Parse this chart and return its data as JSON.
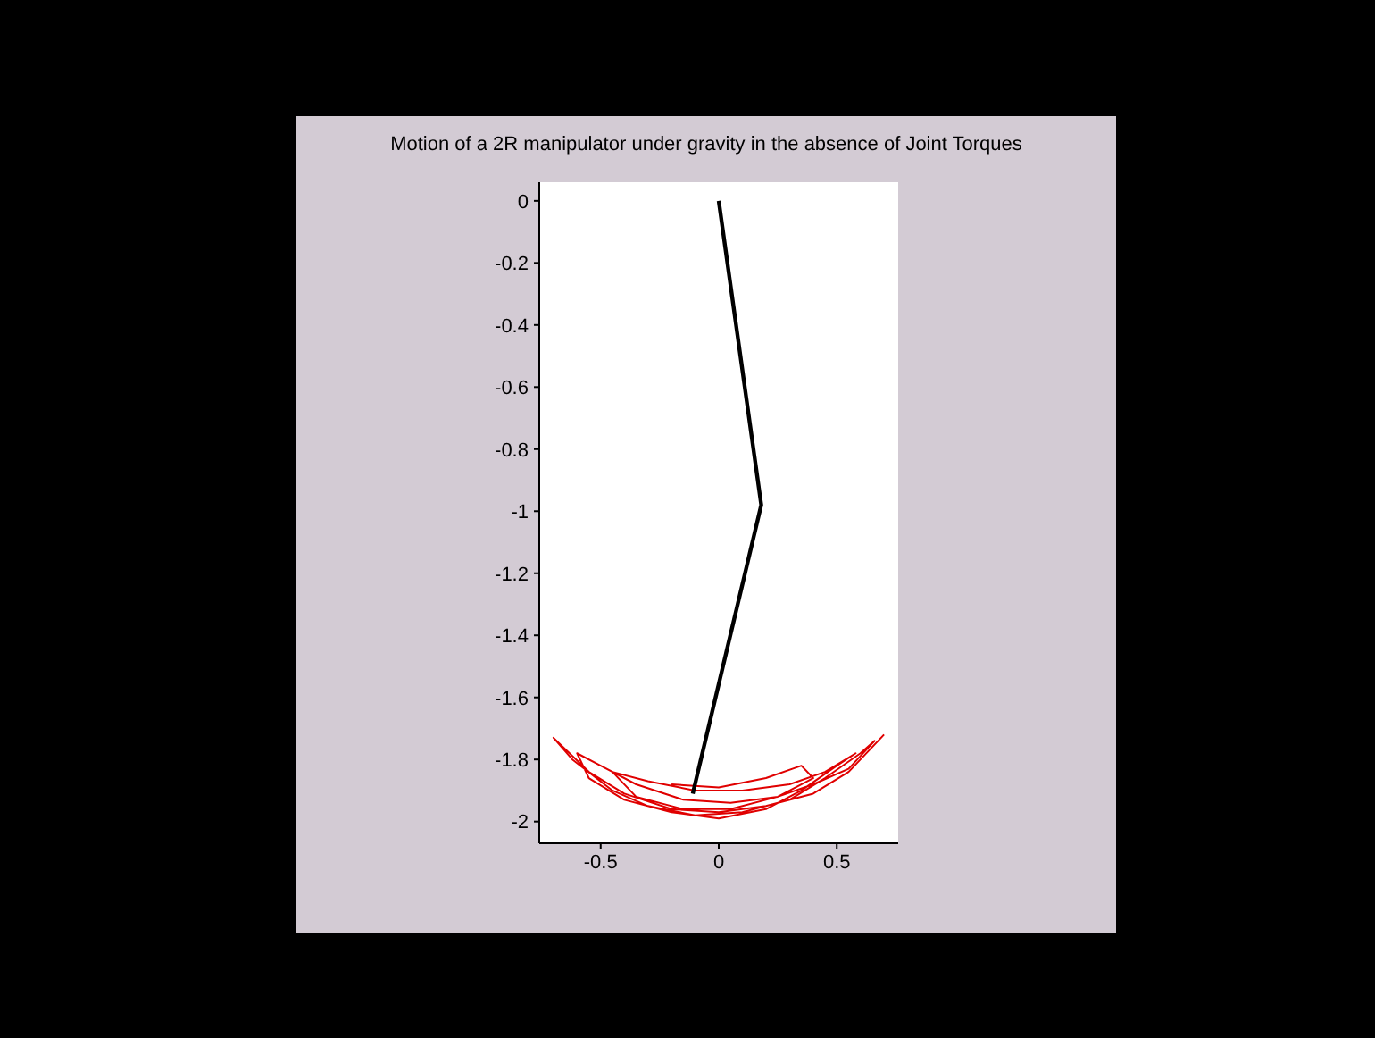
{
  "chart_data": {
    "type": "line",
    "title": "Motion of a 2R manipulator under gravity in the absence of Joint Torques",
    "xlim": [
      -0.76,
      0.76
    ],
    "ylim": [
      -2.07,
      0.06
    ],
    "xticks": [
      -0.5,
      0,
      0.5
    ],
    "yticks": [
      0,
      -0.2,
      -0.4,
      -0.6,
      -0.8,
      -1,
      -1.2,
      -1.4,
      -1.6,
      -1.8,
      -2
    ],
    "series": [
      {
        "color": "#e00000",
        "x": [
          0.7,
          0.55,
          0.4,
          0.2,
          0,
          -0.2,
          -0.4,
          -0.55,
          -0.7,
          -0.62,
          -0.45,
          -0.3,
          -0.1,
          0.1,
          0.3,
          0.45,
          0.6,
          0.66,
          0.55,
          0.4,
          0.25,
          0.05,
          -0.15,
          -0.35,
          -0.5,
          -0.6,
          -0.55,
          -0.4,
          -0.2,
          0,
          0.2,
          0.35,
          0.5,
          0.58,
          0.45,
          0.3,
          0.1,
          -0.1,
          -0.3,
          -0.45,
          -0.35,
          -0.15,
          0.05,
          0.25,
          0.4,
          0.35,
          0.2,
          0,
          -0.2
        ],
        "values": [
          -1.72,
          -1.84,
          -1.91,
          -1.95,
          -1.97,
          -1.96,
          -1.91,
          -1.84,
          -1.73,
          -1.8,
          -1.9,
          -1.95,
          -1.98,
          -1.97,
          -1.93,
          -1.86,
          -1.78,
          -1.74,
          -1.83,
          -1.88,
          -1.92,
          -1.94,
          -1.93,
          -1.88,
          -1.82,
          -1.78,
          -1.86,
          -1.93,
          -1.97,
          -1.99,
          -1.96,
          -1.9,
          -1.82,
          -1.78,
          -1.84,
          -1.88,
          -1.9,
          -1.9,
          -1.87,
          -1.84,
          -1.92,
          -1.96,
          -1.96,
          -1.92,
          -1.86,
          -1.82,
          -1.86,
          -1.89,
          -1.88
        ]
      },
      {
        "color": "#000000",
        "x": [
          0,
          0.18,
          -0.11
        ],
        "values": [
          0,
          -0.98,
          -1.91
        ]
      }
    ]
  }
}
